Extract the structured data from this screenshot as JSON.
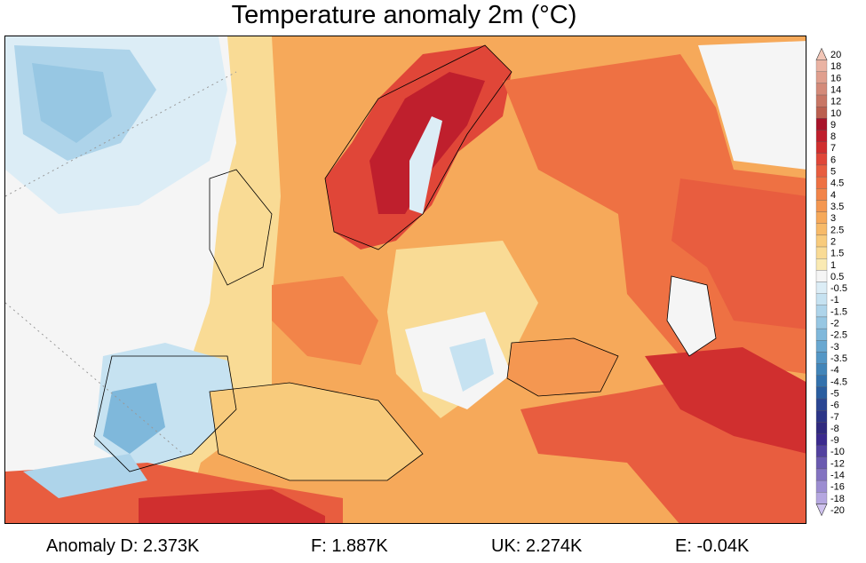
{
  "title": "Temperature anomaly 2m (°C)",
  "legend": {
    "labels": [
      "20",
      "18",
      "16",
      "14",
      "12",
      "10",
      "9",
      "8",
      "7",
      "6",
      "5",
      "4.5",
      "4",
      "3.5",
      "3",
      "2.5",
      "2",
      "1.5",
      "1",
      "0.5",
      "-0.5",
      "-1",
      "-1.5",
      "-2",
      "-2.5",
      "-3",
      "-3.5",
      "-4",
      "-4.5",
      "-5",
      "-6",
      "-7",
      "-8",
      "-9",
      "-10",
      "-12",
      "-14",
      "-16",
      "-18",
      "-20"
    ],
    "colors": [
      "#f2c6b7",
      "#eab3a3",
      "#e09f8e",
      "#d48a79",
      "#c87665",
      "#bb5f4f",
      "#a8142a",
      "#bf1f2d",
      "#d02f2f",
      "#e04638",
      "#e85d3f",
      "#ee7143",
      "#f28449",
      "#f49751",
      "#f6a95a",
      "#f7ba68",
      "#f8cb7c",
      "#f9db95",
      "#faeab3",
      "#f5f5f5",
      "#dcedf6",
      "#c6e2f1",
      "#aed4ea",
      "#97c7e3",
      "#7fb8db",
      "#69a8d1",
      "#5497c6",
      "#4285b9",
      "#3372ad",
      "#2a5ea0",
      "#2a4693",
      "#2c3587",
      "#302a7e",
      "#3b2a8e",
      "#52419f",
      "#6a5ab0",
      "#8373c1",
      "#9c8dd1",
      "#b5a7e0",
      "#cfc2ee"
    ]
  },
  "footer": {
    "d": "Anomaly D: 2.373K",
    "f": "F: 1.887K",
    "uk": "UK: 2.274K",
    "e": "E: -0.04K"
  }
}
